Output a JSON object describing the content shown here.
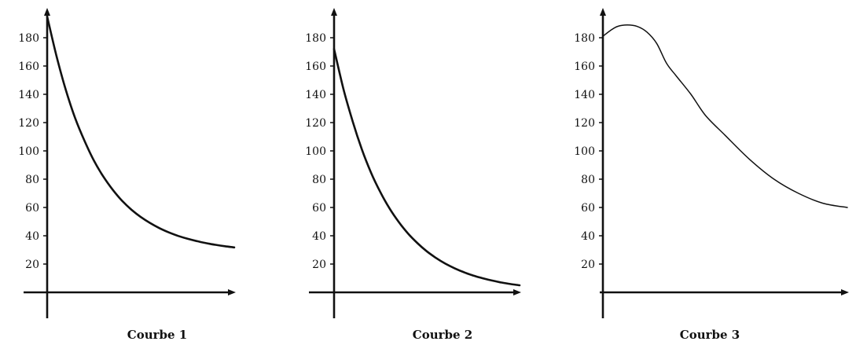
{
  "chart_data": [
    {
      "type": "line",
      "caption": "Courbe 1",
      "yticks": [
        20,
        40,
        60,
        80,
        100,
        120,
        140,
        160,
        180
      ],
      "ylim": [
        0,
        195
      ],
      "xlim": [
        0,
        10
      ],
      "grid": false,
      "series": [
        {
          "x": [
            0,
            0.5,
            1,
            1.5,
            2,
            2.5,
            3,
            3.5,
            4,
            4.5,
            5,
            5.5,
            6,
            6.5,
            7,
            7.5,
            8,
            8.5,
            9,
            9.5,
            10
          ],
          "y": [
            195,
            167,
            143,
            123,
            107,
            93.1,
            81.9,
            72.6,
            64.8,
            58.5,
            53.3,
            49.0,
            45.4,
            42.4,
            39.9,
            37.9,
            36.2,
            34.8,
            33.6,
            32.6,
            31.8
          ]
        }
      ]
    },
    {
      "type": "line",
      "caption": "Courbe 2",
      "yticks": [
        20,
        40,
        60,
        80,
        100,
        120,
        140,
        160,
        180
      ],
      "ylim": [
        0,
        195
      ],
      "xlim": [
        0,
        10
      ],
      "grid": false,
      "series": [
        {
          "x": [
            0,
            0.5,
            1,
            1.5,
            2,
            2.5,
            3,
            3.5,
            4,
            4.5,
            5,
            5.5,
            6,
            6.5,
            7,
            7.5,
            8,
            8.5,
            9,
            9.5,
            10
          ],
          "y": [
            172,
            144,
            121,
            101,
            84.4,
            70.7,
            59.1,
            49.5,
            41.4,
            34.7,
            29.0,
            24.3,
            20.3,
            17.0,
            14.2,
            11.9,
            10.0,
            8.4,
            7.0,
            5.9,
            5.0
          ]
        }
      ]
    },
    {
      "type": "line",
      "caption": "Courbe 3",
      "yticks": [
        20,
        40,
        60,
        80,
        100,
        120,
        140,
        160,
        180
      ],
      "ylim": [
        0,
        195
      ],
      "xlim": [
        0,
        10
      ],
      "grid": false,
      "series": [
        {
          "x": [
            0,
            0.3,
            0.6,
            1.0,
            1.4,
            1.8,
            2.2,
            2.6,
            3.0,
            3.6,
            4.2,
            5.0,
            6.0,
            7.0,
            8.0,
            9.0,
            10.0
          ],
          "y": [
            181,
            185,
            188,
            189,
            188,
            184,
            176,
            162,
            153,
            140,
            125,
            111,
            94,
            80,
            70,
            63,
            60
          ]
        }
      ]
    }
  ]
}
